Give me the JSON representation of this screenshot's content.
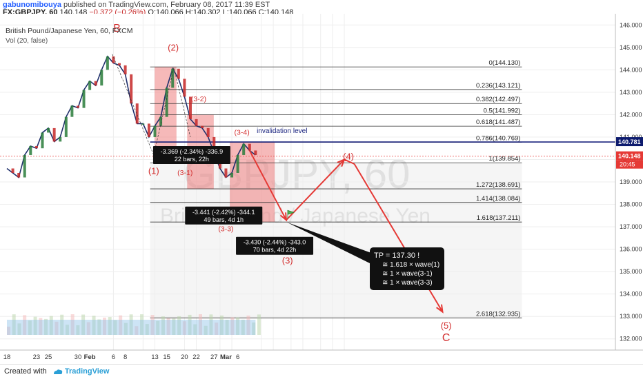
{
  "header": {
    "author": "gabunomibouya",
    "published": "published on TradingView.com, February 08, 2017 11:39 EST",
    "symbol": "FX:GBPJPY, 60",
    "last": "140.148",
    "change": "−0.372 (−0.26%)",
    "open": "O:140.066",
    "high": "H:140.302",
    "low": "L:140.066",
    "close": "C:140.148"
  },
  "legend": {
    "title": "British Pound/Japanese Yen, 60, FXCM",
    "volume": "Vol (20, false)"
  },
  "watermark": {
    "symbol": "GBPJPY, 60",
    "name": "British Pound / Japanese Yen"
  },
  "footer": {
    "created_with": "Created with",
    "brand": "TradingView"
  },
  "colors": {
    "up": "#2a7d3b",
    "down": "#c62828",
    "fib": "#333333",
    "invalidation": "#1a237e",
    "red_arrow": "#e53935",
    "box": "#f08080",
    "price_tag": "#0d1b6e",
    "current_tag": "#e53935"
  },
  "chart_data": {
    "type": "candlestick",
    "title": "British Pound/Japanese Yen, 60, FXCM",
    "y_axis": {
      "ylim": [
        131.5,
        146.5
      ],
      "ticks": [
        132.0,
        133.0,
        134.0,
        135.0,
        136.0,
        137.0,
        138.0,
        139.0,
        140.0,
        141.0,
        142.0,
        143.0,
        144.0,
        145.0,
        146.0
      ],
      "tick_labels": [
        "132.000",
        "133.000",
        "134.000",
        "135.000",
        "136.000",
        "137.000",
        "138.000",
        "139.000",
        "140.000",
        "141.000",
        "142.000",
        "143.000",
        "144.000",
        "145.000",
        "146.000"
      ]
    },
    "x_axis": {
      "ticks": [
        18,
        23,
        25,
        30,
        32,
        36,
        38,
        43,
        45,
        48,
        50,
        53,
        55,
        57
      ],
      "tick_labels": [
        "18",
        "23",
        "25",
        "30",
        "Feb",
        "6",
        "8",
        "13",
        "15",
        "20",
        "22",
        "27",
        "Mar",
        "6"
      ],
      "xlim": [
        0,
        59
      ]
    },
    "price_path": [
      [
        0,
        139.6
      ],
      [
        1,
        139.4
      ],
      [
        2,
        139.2
      ],
      [
        3,
        140.2
      ],
      [
        4,
        140.6
      ],
      [
        5,
        140.5
      ],
      [
        6,
        141.2
      ],
      [
        7,
        141.4
      ],
      [
        8,
        140.8
      ],
      [
        9,
        141.0
      ],
      [
        10,
        141.9
      ],
      [
        11,
        142.4
      ],
      [
        12,
        142.3
      ],
      [
        13,
        143.1
      ],
      [
        14,
        143.5
      ],
      [
        15,
        143.3
      ],
      [
        16,
        144.0
      ],
      [
        17,
        144.6
      ],
      [
        18,
        144.3
      ],
      [
        19,
        144.2
      ],
      [
        20,
        143.8
      ],
      [
        21,
        142.5
      ],
      [
        22,
        141.6
      ],
      [
        23,
        141.6
      ],
      [
        24,
        141.0
      ],
      [
        25,
        141.5
      ],
      [
        26,
        141.9
      ],
      [
        27,
        143.2
      ],
      [
        28,
        144.05
      ],
      [
        29,
        143.6
      ],
      [
        30,
        142.8
      ],
      [
        31,
        141.8
      ],
      [
        32,
        141.5
      ],
      [
        33,
        141.4
      ],
      [
        34,
        141.0
      ],
      [
        35,
        140.3
      ],
      [
        36,
        139.6
      ],
      [
        37,
        139.2
      ],
      [
        38,
        139.4
      ],
      [
        39,
        140.2
      ],
      [
        40,
        140.7
      ],
      [
        41,
        140.4
      ],
      [
        42,
        140.2
      ]
    ],
    "current_price": 140.148,
    "last_price_tag": "140.148",
    "time_tag": "20:45",
    "highlight_price": "140.781",
    "fib_levels": [
      {
        "ratio": "0",
        "price": 144.13
      },
      {
        "ratio": "0.236",
        "price": 143.121
      },
      {
        "ratio": "0.382",
        "price": 142.497
      },
      {
        "ratio": "0.5",
        "price": 141.992
      },
      {
        "ratio": "0.618",
        "price": 141.487
      },
      {
        "ratio": "0.786",
        "price": 140.769
      },
      {
        "ratio": "1",
        "price": 139.854
      },
      {
        "ratio": "1.272",
        "price": 138.691
      },
      {
        "ratio": "1.414",
        "price": 138.084
      },
      {
        "ratio": "1.618",
        "price": 137.211
      },
      {
        "ratio": "2.618",
        "price": 132.935
      }
    ],
    "invalidation": {
      "label": "invalidation level",
      "price": 140.78
    },
    "wave_labels": [
      {
        "text": "B",
        "x": 18.6,
        "y": 145.7
      },
      {
        "text": "(2)",
        "x": 28.1,
        "y": 144.85
      },
      {
        "text": "(3-2)",
        "x": 32.4,
        "y": 142.6
      },
      {
        "text": "(3-4)",
        "x": 39.7,
        "y": 141.1
      },
      {
        "text": "(1)",
        "x": 24.8,
        "y": 139.35
      },
      {
        "text": "(3-1)",
        "x": 30.1,
        "y": 139.3
      },
      {
        "text": "(3-3)",
        "x": 37.0,
        "y": 136.8
      },
      {
        "text": "(3-5)",
        "x": 47.4,
        "y": 135.95
      },
      {
        "text": "(3)",
        "x": 47.4,
        "y": 135.35
      },
      {
        "text": "(4)",
        "x": 57.7,
        "y": 140.0
      },
      {
        "text": "(5)",
        "x": 74.2,
        "y": 132.45
      },
      {
        "text": "C",
        "x": 74.2,
        "y": 131.9
      }
    ],
    "measures": [
      {
        "line1": "-3.369 (-2.34%) -336.9",
        "line2": "22 bars, 22h"
      },
      {
        "line1": "-3.441 (-2.42%) -344.1",
        "line2": "49 bars, 4d 1h"
      },
      {
        "line1": "-3.430 (-2.44%) -343.0",
        "line2": "70 bars, 4d 22h"
      }
    ],
    "projection": [
      [
        41,
        140.4
      ],
      [
        47.2,
        137.3
      ],
      [
        57.0,
        140.0
      ],
      [
        58.7,
        139.8
      ],
      [
        73.6,
        133.2
      ]
    ],
    "tp_note": [
      "TP = 137.30 !",
      "≅ 1.618 × wave(1)",
      "≅ 1 × wave(3-1)",
      "≅ 1 × wave(3-3)"
    ]
  }
}
